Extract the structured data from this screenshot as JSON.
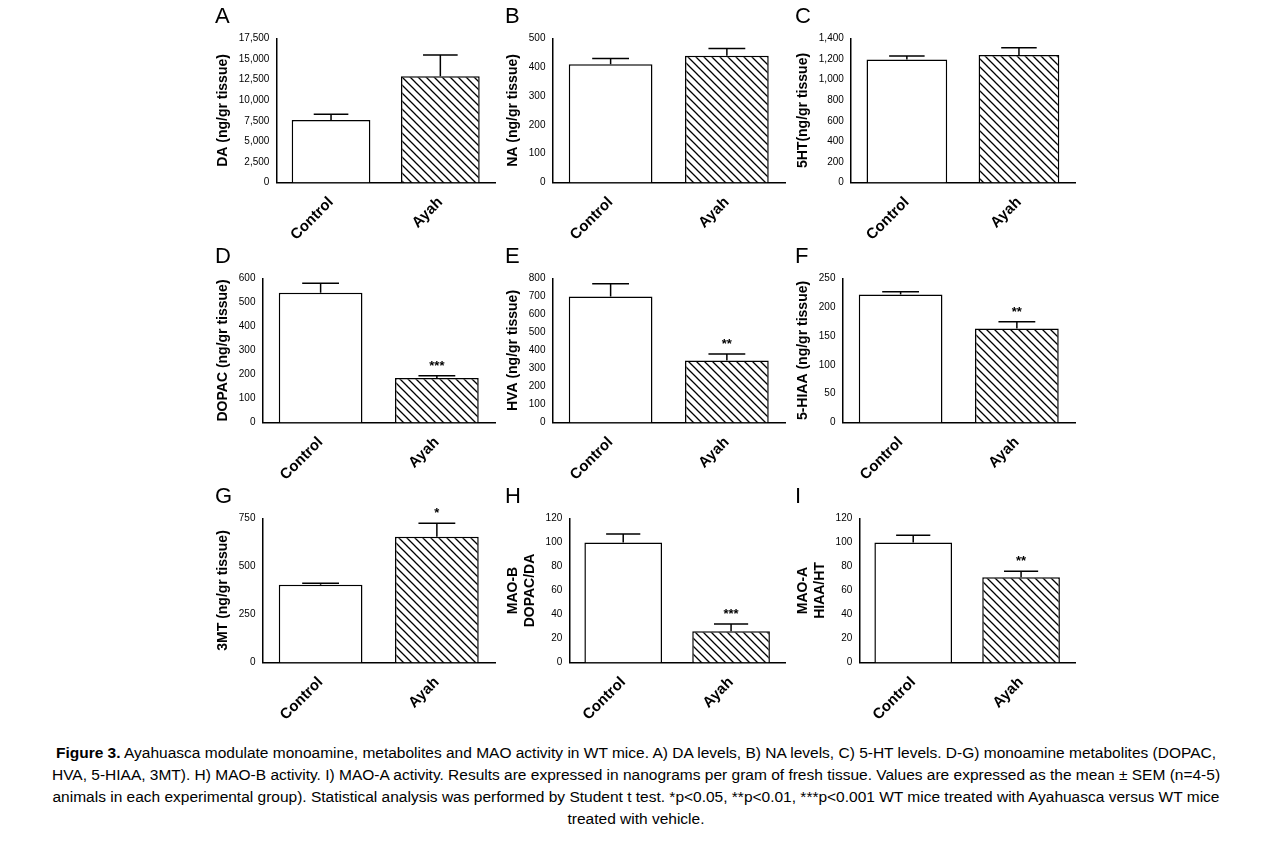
{
  "chart_data": [
    {
      "type": "bar",
      "title": "A",
      "y_label": "DA (ng/gr tissue)",
      "categories": [
        "Control",
        "Ayah"
      ],
      "values": [
        7600,
        12900
      ],
      "errors": [
        700,
        2600
      ],
      "ylim": [
        0,
        17500
      ],
      "yticks": [
        0,
        2500,
        5000,
        7500,
        10000,
        12500,
        15000,
        17500
      ],
      "grid": false
    },
    {
      "type": "bar",
      "title": "B",
      "y_label": "NA (ng/gr tissue)",
      "categories": [
        "Control",
        "Ayah"
      ],
      "values": [
        410,
        440
      ],
      "errors": [
        20,
        25
      ],
      "ylim": [
        0,
        500
      ],
      "yticks": [
        0,
        100,
        200,
        300,
        400,
        500
      ],
      "grid": false
    },
    {
      "type": "bar",
      "title": "C",
      "y_label": "5HT(ng/gr tissue)",
      "categories": [
        "Control",
        "Ayah"
      ],
      "values": [
        1195,
        1240
      ],
      "errors": [
        35,
        70
      ],
      "ylim": [
        0,
        1400
      ],
      "yticks": [
        0,
        200,
        400,
        600,
        800,
        1000,
        1200,
        1400
      ],
      "grid": false
    },
    {
      "type": "bar",
      "title": "D",
      "y_label": "DOPAC (ng/gr tissue)",
      "categories": [
        "Control",
        "Ayah"
      ],
      "values": [
        540,
        185
      ],
      "errors": [
        40,
        10
      ],
      "annotations": [
        {
          "category": "Ayah",
          "text": "***"
        }
      ],
      "ylim": [
        0,
        600
      ],
      "yticks": [
        0,
        100,
        200,
        300,
        400,
        500,
        600
      ],
      "grid": false
    },
    {
      "type": "bar",
      "title": "E",
      "y_label": "HVA (ng/gr tissue)",
      "categories": [
        "Control",
        "Ayah"
      ],
      "values": [
        700,
        345
      ],
      "errors": [
        70,
        35
      ],
      "annotations": [
        {
          "category": "Ayah",
          "text": "**"
        }
      ],
      "ylim": [
        0,
        800
      ],
      "yticks": [
        0,
        100,
        200,
        300,
        400,
        500,
        600,
        700,
        800
      ],
      "grid": false
    },
    {
      "type": "bar",
      "title": "F",
      "y_label": "5-HIAA (ng/gr tissue)",
      "categories": [
        "Control",
        "Ayah"
      ],
      "values": [
        222,
        163
      ],
      "errors": [
        5,
        12
      ],
      "annotations": [
        {
          "category": "Ayah",
          "text": "**"
        }
      ],
      "ylim": [
        0,
        250
      ],
      "yticks": [
        0,
        50,
        100,
        150,
        200,
        250
      ],
      "grid": false
    },
    {
      "type": "bar",
      "title": "G",
      "y_label": "3MT (ng/gr tissue)",
      "categories": [
        "Control",
        "Ayah"
      ],
      "values": [
        405,
        655
      ],
      "errors": [
        8,
        70
      ],
      "annotations": [
        {
          "category": "Ayah",
          "text": "*"
        }
      ],
      "ylim": [
        0,
        750
      ],
      "yticks": [
        0,
        250,
        500,
        750
      ],
      "grid": false
    },
    {
      "type": "bar",
      "title": "H",
      "y_label": [
        "MAO-B",
        "DOPAC/DA"
      ],
      "categories": [
        "Control",
        "Ayah"
      ],
      "values": [
        100,
        26
      ],
      "errors": [
        7,
        6
      ],
      "annotations": [
        {
          "category": "Ayah",
          "text": "***"
        }
      ],
      "ylim": [
        0,
        120
      ],
      "yticks": [
        0,
        20,
        40,
        60,
        80,
        100,
        120
      ],
      "grid": false
    },
    {
      "type": "bar",
      "title": "I",
      "y_label": [
        "MAO-A",
        "HIAA/HT"
      ],
      "categories": [
        "Control",
        "Ayah"
      ],
      "values": [
        100,
        71
      ],
      "errors": [
        6,
        5
      ],
      "annotations": [
        {
          "category": "Ayah",
          "text": "**"
        }
      ],
      "ylim": [
        0,
        120
      ],
      "yticks": [
        0,
        20,
        40,
        60,
        80,
        100,
        120
      ],
      "grid": false
    }
  ],
  "caption": {
    "label": "Figure 3.",
    "text": "Ayahuasca modulate monoamine, metabolites and MAO activity in WT mice. A) DA levels, B) NA levels, C) 5-HT levels. D-G) monoamine metabolites (DOPAC, HVA, 5-HIAA, 3MT). H) MAO-B activity. I) MAO-A activity. Results are expressed in nanograms per gram of fresh tissue. Values are expressed as the mean ± SEM (n=4-5) animals in each experimental group). Statistical analysis was performed by Student t test. *p<0.05, **p<0.01, ***p<0.001 WT mice treated with Ayahuasca versus WT mice treated with vehicle."
  }
}
